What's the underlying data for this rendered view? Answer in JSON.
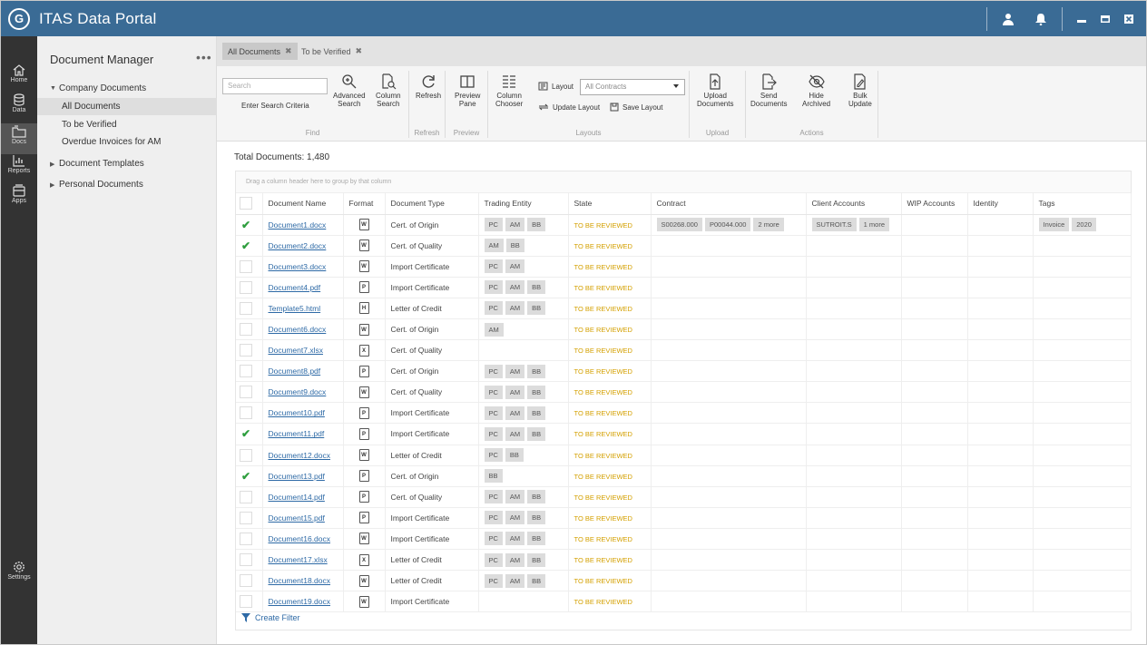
{
  "app": {
    "title": "ITAS Data Portal",
    "logo_text": "G"
  },
  "rail": [
    {
      "label": "Home",
      "icon": "home-icon"
    },
    {
      "label": "Data",
      "icon": "database-icon"
    },
    {
      "label": "Docs",
      "icon": "folder-icon"
    },
    {
      "label": "Reports",
      "icon": "chart-icon"
    },
    {
      "label": "Apps",
      "icon": "apps-icon"
    },
    {
      "label": "Settings",
      "icon": "gear-icon"
    }
  ],
  "sidenav": {
    "title": "Document Manager",
    "more": "•••",
    "company": "Company Documents",
    "all": "All Documents",
    "verified": "To be Verified",
    "overdue": "Overdue Invoices for AM",
    "templates": "Document Templates",
    "personal": "Personal Documents"
  },
  "tabs": [
    {
      "label": "All Documents",
      "close": "✖"
    },
    {
      "label": "To be Verified",
      "close": "✖"
    }
  ],
  "ribbon": {
    "search_placeholder": "Search",
    "enter_criteria": "Enter Search Criteria",
    "advanced_1": "Advanced",
    "advanced_2": "Search",
    "column_search_1": "Column",
    "column_search_2": "Search",
    "refresh": "Refresh",
    "preview_1": "Preview",
    "preview_2": "Pane",
    "chooser_1": "Column",
    "chooser_2": "Chooser",
    "layout": "Layout",
    "layout_value": "All Contracts",
    "update_layout": "Update Layout",
    "save_layout": "Save Layout",
    "upload_1": "Upload",
    "upload_2": "Documents",
    "send_1": "Send",
    "send_2": "Documents",
    "hide_1": "Hide",
    "hide_2": "Archived",
    "bulk_1": "Bulk",
    "bulk_2": "Update",
    "groups": {
      "find": "Find",
      "refresh": "Refresh",
      "preview": "Preview",
      "layouts": "Layouts",
      "upload": "Upload",
      "actions": "Actions"
    }
  },
  "total": "Total Documents: 1,480",
  "grid": {
    "drag_hint": "Drag a column header here to group by that column",
    "columns": [
      "Document Name",
      "Format",
      "Document Type",
      "Trading Entity",
      "State",
      "Contract",
      "Client Accounts",
      "WIP Accounts",
      "Identity",
      "Tags"
    ],
    "rows": [
      {
        "checked": true,
        "name": "Document1.docx",
        "fmt": "W",
        "type": "Cert. of Origin",
        "entities": [
          "PC",
          "AM",
          "BB"
        ],
        "state": "TO BE REVIEWED",
        "contracts": [
          "S00268.000",
          "P00044.000",
          "2 more"
        ],
        "clients": [
          "SUTROIT.S",
          "1 more"
        ],
        "tags": [
          "Invoice",
          "2020"
        ]
      },
      {
        "checked": true,
        "name": "Document2.docx",
        "fmt": "W",
        "type": "Cert. of Quality",
        "entities": [
          "AM",
          "BB"
        ],
        "state": "TO BE REVIEWED",
        "contracts": [],
        "clients": [],
        "tags": []
      },
      {
        "checked": false,
        "name": "Document3.docx",
        "fmt": "W",
        "type": "Import Certificate",
        "entities": [
          "PC",
          "AM"
        ],
        "state": "TO BE REVIEWED",
        "contracts": [],
        "clients": [],
        "tags": []
      },
      {
        "checked": false,
        "name": "Document4.pdf",
        "fmt": "P",
        "type": "Import Certificate",
        "entities": [
          "PC",
          "AM",
          "BB"
        ],
        "state": "TO BE REVIEWED",
        "contracts": [],
        "clients": [],
        "tags": []
      },
      {
        "checked": false,
        "name": "Template5.html",
        "fmt": "H",
        "type": "Letter of Credit",
        "entities": [
          "PC",
          "AM",
          "BB"
        ],
        "state": "TO BE REVIEWED",
        "contracts": [],
        "clients": [],
        "tags": []
      },
      {
        "checked": false,
        "name": "Document6.docx",
        "fmt": "W",
        "type": "Cert. of Origin",
        "entities": [
          "AM"
        ],
        "state": "TO BE REVIEWED",
        "contracts": [],
        "clients": [],
        "tags": []
      },
      {
        "checked": false,
        "name": "Document7.xlsx",
        "fmt": "X",
        "type": "Cert. of Quality",
        "entities": [],
        "state": "TO BE REVIEWED",
        "contracts": [],
        "clients": [],
        "tags": []
      },
      {
        "checked": false,
        "name": "Document8.pdf",
        "fmt": "P",
        "type": "Cert. of Origin",
        "entities": [
          "PC",
          "AM",
          "BB"
        ],
        "state": "TO BE REVIEWED",
        "contracts": [],
        "clients": [],
        "tags": []
      },
      {
        "checked": false,
        "name": "Document9.docx",
        "fmt": "W",
        "type": "Cert. of Quality",
        "entities": [
          "PC",
          "AM",
          "BB"
        ],
        "state": "TO BE REVIEWED",
        "contracts": [],
        "clients": [],
        "tags": []
      },
      {
        "checked": false,
        "name": "Document10.pdf",
        "fmt": "P",
        "type": "Import Certificate",
        "entities": [
          "PC",
          "AM",
          "BB"
        ],
        "state": "TO BE REVIEWED",
        "contracts": [],
        "clients": [],
        "tags": []
      },
      {
        "checked": true,
        "name": "Document11.pdf",
        "fmt": "P",
        "type": "Import Certificate",
        "entities": [
          "PC",
          "AM",
          "BB"
        ],
        "state": "TO BE REVIEWED",
        "contracts": [],
        "clients": [],
        "tags": []
      },
      {
        "checked": false,
        "name": "Document12.docx",
        "fmt": "W",
        "type": "Letter of Credit",
        "entities": [
          "PC",
          "BB"
        ],
        "state": "TO BE REVIEWED",
        "contracts": [],
        "clients": [],
        "tags": []
      },
      {
        "checked": true,
        "name": "Document13.pdf",
        "fmt": "P",
        "type": "Cert. of Origin",
        "entities": [
          "BB"
        ],
        "state": "TO BE REVIEWED",
        "contracts": [],
        "clients": [],
        "tags": []
      },
      {
        "checked": false,
        "name": "Document14.pdf",
        "fmt": "P",
        "type": "Cert. of Quality",
        "entities": [
          "PC",
          "AM",
          "BB"
        ],
        "state": "TO BE REVIEWED",
        "contracts": [],
        "clients": [],
        "tags": []
      },
      {
        "checked": false,
        "name": "Document15.pdf",
        "fmt": "P",
        "type": "Import Certificate",
        "entities": [
          "PC",
          "AM",
          "BB"
        ],
        "state": "TO BE REVIEWED",
        "contracts": [],
        "clients": [],
        "tags": []
      },
      {
        "checked": false,
        "name": "Document16.docx",
        "fmt": "W",
        "type": "Import Certificate",
        "entities": [
          "PC",
          "AM",
          "BB"
        ],
        "state": "TO BE REVIEWED",
        "contracts": [],
        "clients": [],
        "tags": []
      },
      {
        "checked": false,
        "name": "Document17.xlsx",
        "fmt": "X",
        "type": "Letter of Credit",
        "entities": [
          "PC",
          "AM",
          "BB"
        ],
        "state": "TO BE REVIEWED",
        "contracts": [],
        "clients": [],
        "tags": []
      },
      {
        "checked": false,
        "name": "Document18.docx",
        "fmt": "W",
        "type": "Letter of Credit",
        "entities": [
          "PC",
          "AM",
          "BB"
        ],
        "state": "TO BE REVIEWED",
        "contracts": [],
        "clients": [],
        "tags": []
      },
      {
        "checked": false,
        "name": "Document19.docx",
        "fmt": "W",
        "type": "Import Certificate",
        "entities": [],
        "state": "TO BE REVIEWED",
        "contracts": [],
        "clients": [],
        "tags": []
      }
    ],
    "create_filter": "Create Filter"
  },
  "colors": {
    "titlebar": "#3a6b95",
    "rail": "#333333",
    "state": "#d4a000",
    "link": "#2e6aa6",
    "check": "#2e9e3e"
  }
}
